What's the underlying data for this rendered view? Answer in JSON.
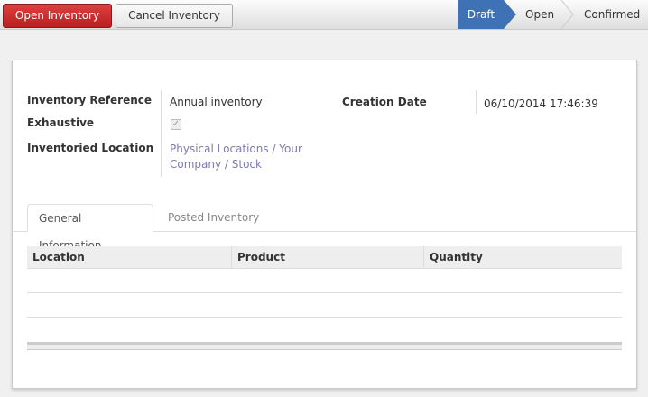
{
  "header": {
    "open_inventory_label": "Open Inventory",
    "cancel_inventory_label": "Cancel Inventory",
    "statusbar": [
      {
        "label": "Draft",
        "active": true
      },
      {
        "label": "Open",
        "active": false
      },
      {
        "label": "Confirmed",
        "active": false
      }
    ],
    "accent_color": "#3f72b4",
    "primary_button_color": "#c92a2a"
  },
  "form": {
    "inventory_reference_label": "Inventory Reference",
    "inventory_reference_value": "Annual inventory",
    "exhaustive_label": "Exhaustive",
    "exhaustive_checked": true,
    "inventoried_location_label": "Inventoried Location",
    "inventoried_location_value": "Physical Locations / Your Company / Stock",
    "creation_date_label": "Creation Date",
    "creation_date_value": "06/10/2014 17:46:39"
  },
  "tabs": [
    {
      "label": "General Information",
      "active": true
    },
    {
      "label": "Posted Inventory",
      "active": false
    }
  ],
  "table": {
    "columns": [
      "Location",
      "Product",
      "Quantity"
    ],
    "rows": []
  }
}
